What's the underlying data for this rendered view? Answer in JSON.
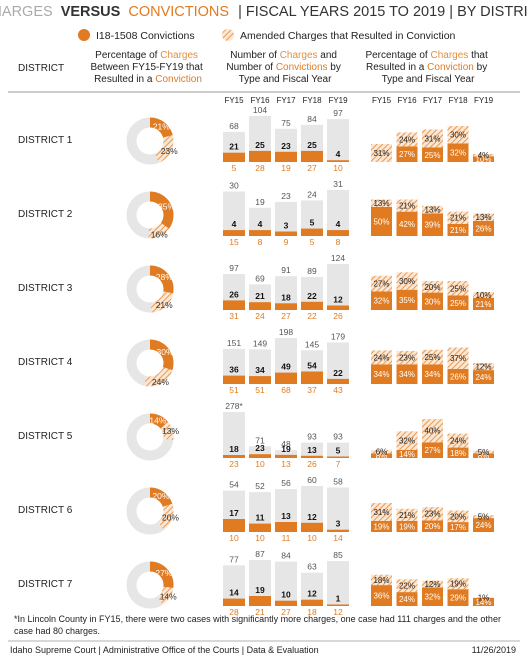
{
  "title": {
    "p1": "CHARGES",
    "p2": "VERSUS",
    "p3": "CONVICTIONS",
    "p4": "| FISCAL YEARS 2015 TO 2019 | BY DISTRICT"
  },
  "legend": {
    "solid": "I18-1508 Convictions",
    "hatched": "Amended Charges that Resulted in Conviction"
  },
  "headers": {
    "district": "DISTRICT",
    "col1": [
      "Percentage of Charges",
      "Between FY15-FY19 that",
      "Resulted in a Conviction"
    ],
    "col2": [
      "Number of Charges and",
      "Number of Convictions by",
      "Type and Fiscal Year"
    ],
    "col3": [
      "Percentage of Charges that",
      "Resulted in a Conviction by",
      "Type and Fiscal Year"
    ]
  },
  "fiscal_years": [
    "FY15",
    "FY16",
    "FY17",
    "FY18",
    "FY19"
  ],
  "colors": {
    "orange": "#E07B22",
    "hatch": "#E9A262",
    "gray": "#E6E6E6",
    "orange_text": "#E07B22",
    "gray_text": "#E6A060"
  },
  "chart_data": {
    "type": "table",
    "districts": [
      {
        "name": "DISTRICT 1",
        "donut": {
          "solid": 21,
          "amended": 23
        },
        "charges": [
          68,
          104,
          75,
          84,
          97
        ],
        "conv_1508": [
          21,
          25,
          23,
          25,
          4
        ],
        "conv_amended": [
          5,
          28,
          19,
          27,
          10
        ],
        "pct_1508": [
          null,
          27,
          25,
          32,
          10
        ],
        "pct_amended": [
          31,
          24,
          31,
          30,
          4
        ]
      },
      {
        "name": "DISTRICT 2",
        "donut": {
          "solid": 35,
          "amended": 16
        },
        "charges": [
          30,
          19,
          23,
          24,
          31
        ],
        "conv_1508": [
          4,
          4,
          3,
          5,
          4
        ],
        "conv_amended": [
          15,
          8,
          9,
          5,
          8
        ],
        "pct_1508": [
          50,
          42,
          39,
          21,
          26
        ],
        "pct_amended": [
          13,
          21,
          13,
          21,
          13
        ]
      },
      {
        "name": "DISTRICT 3",
        "donut": {
          "solid": 28,
          "amended": 21
        },
        "charges": [
          97,
          69,
          91,
          89,
          124
        ],
        "conv_1508": [
          26,
          21,
          18,
          22,
          12
        ],
        "conv_amended": [
          31,
          24,
          27,
          22,
          26
        ],
        "pct_1508": [
          32,
          35,
          30,
          25,
          21
        ],
        "pct_amended": [
          27,
          30,
          20,
          25,
          10
        ]
      },
      {
        "name": "DISTRICT 4",
        "donut": {
          "solid": 30,
          "amended": 24
        },
        "charges": [
          151,
          149,
          198,
          145,
          179
        ],
        "conv_1508": [
          36,
          34,
          49,
          54,
          22
        ],
        "conv_amended": [
          51,
          51,
          68,
          37,
          43
        ],
        "pct_1508": [
          34,
          34,
          34,
          26,
          24
        ],
        "pct_amended": [
          24,
          23,
          25,
          37,
          12
        ]
      },
      {
        "name": "DISTRICT 5",
        "donut": {
          "solid": 14,
          "amended": 13
        },
        "charges": [
          278,
          71,
          48,
          93,
          93
        ],
        "charges_labels": [
          "278*",
          "71",
          "48",
          "93",
          "93"
        ],
        "conv_1508": [
          18,
          23,
          19,
          13,
          5
        ],
        "conv_amended": [
          23,
          10,
          13,
          26,
          7
        ],
        "pct_1508": [
          8,
          14,
          27,
          18,
          8
        ],
        "pct_amended": [
          6,
          32,
          40,
          24,
          5
        ]
      },
      {
        "name": "DISTRICT 6",
        "donut": {
          "solid": 20,
          "amended": 20
        },
        "charges": [
          54,
          52,
          56,
          60,
          58
        ],
        "conv_1508": [
          17,
          11,
          13,
          12,
          3
        ],
        "conv_amended": [
          10,
          10,
          11,
          10,
          14
        ],
        "pct_1508": [
          19,
          19,
          20,
          17,
          24
        ],
        "pct_amended": [
          31,
          21,
          23,
          20,
          5
        ]
      },
      {
        "name": "DISTRICT 7",
        "donut": {
          "solid": 27,
          "amended": 14
        },
        "charges": [
          77,
          87,
          84,
          63,
          85
        ],
        "conv_1508": [
          14,
          19,
          10,
          12,
          1
        ],
        "conv_amended": [
          28,
          21,
          27,
          18,
          12
        ],
        "pct_1508": [
          36,
          24,
          32,
          29,
          14
        ],
        "pct_amended": [
          18,
          22,
          12,
          19,
          1
        ]
      }
    ]
  },
  "footnote": [
    "*In Lincoln County in FY15, there were two cases with significantly more charges, one case had 111 charges and the other",
    "case had 80 charges."
  ],
  "footer": {
    "left": "Idaho Supreme Court | Administrative Office of the Courts | Data & Evaluation",
    "right": "11/26/2019"
  }
}
